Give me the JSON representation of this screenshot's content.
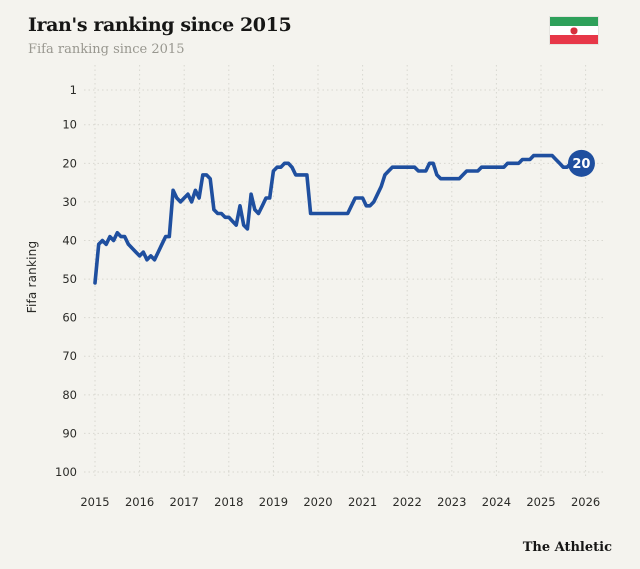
{
  "page": {
    "background": "#f4f3ee",
    "grid_color": "#d8d7d0",
    "tick_text_color": "#2b2b28"
  },
  "header": {
    "title": "Iran's ranking since 2015",
    "subtitle": "Fifa ranking since 2015",
    "flag": {
      "country": "Iran",
      "green": "#2ea05a",
      "white": "#ffffff",
      "red": "#e73748",
      "emblem_color": "#d62f3c"
    }
  },
  "footer": {
    "brand": "The Athletic"
  },
  "chart_data": {
    "type": "line",
    "title": "Iran's ranking since 2015",
    "subtitle": "Fifa ranking since 2015",
    "xlabel": "",
    "ylabel": "Fifa ranking",
    "y_inverted": true,
    "ylim": [
      1,
      100
    ],
    "yticks": [
      1,
      10,
      20,
      30,
      40,
      50,
      60,
      70,
      80,
      90,
      100
    ],
    "xticks": [
      2015,
      2016,
      2017,
      2018,
      2019,
      2020,
      2021,
      2022,
      2023,
      2024,
      2025,
      2026
    ],
    "grid": "dotted",
    "legend": "none",
    "line_color": "#1f4f9f",
    "end_label": {
      "value": 20,
      "bg": "#1f4f9f",
      "text_color": "#ffffff"
    },
    "series": [
      {
        "name": "Iran FIFA ranking",
        "x_start": 2015,
        "x_step_months": 1,
        "values": [
          51,
          41,
          40,
          41,
          39,
          40,
          38,
          39,
          39,
          41,
          42,
          43,
          44,
          43,
          45,
          44,
          45,
          43,
          41,
          39,
          39,
          27,
          29,
          30,
          29,
          28,
          30,
          27,
          29,
          23,
          23,
          24,
          32,
          33,
          33,
          34,
          34,
          35,
          36,
          31,
          36,
          37,
          28,
          32,
          33,
          31,
          29,
          29,
          22,
          21,
          21,
          20,
          20,
          21,
          23,
          23,
          23,
          23,
          33,
          33,
          33,
          33,
          33,
          33,
          33,
          33,
          33,
          33,
          33,
          31,
          29,
          29,
          29,
          31,
          31,
          30,
          28,
          26,
          23,
          22,
          21,
          21,
          21,
          21,
          21,
          21,
          21,
          22,
          22,
          22,
          20,
          20,
          23,
          24,
          24,
          24,
          24,
          24,
          24,
          23,
          22,
          22,
          22,
          22,
          21,
          21,
          21,
          21,
          21,
          21,
          21,
          20,
          20,
          20,
          20,
          19,
          19,
          19,
          18,
          18,
          18,
          18,
          18,
          18,
          19,
          20,
          21,
          21,
          20,
          20
        ]
      }
    ]
  }
}
